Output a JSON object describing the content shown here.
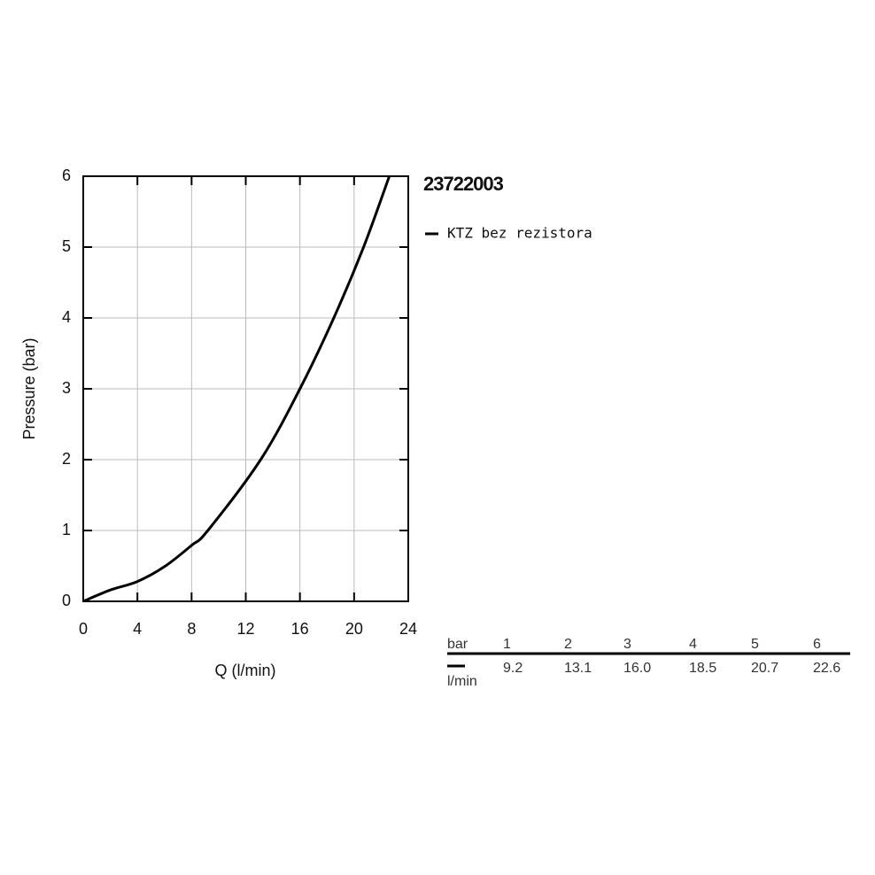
{
  "chart_data": {
    "type": "line",
    "title": "23722003",
    "x_label": "Q (l/min)",
    "y_label": "Pressure (bar)",
    "x": [
      0,
      2,
      4,
      6,
      8,
      9.2,
      13.1,
      16.0,
      18.5,
      20.7,
      22.6
    ],
    "series": [
      {
        "name": "KTZ bez rezistora",
        "color": "#000000",
        "values": [
          0,
          0.16,
          0.28,
          0.49,
          0.79,
          1,
          2,
          3,
          4,
          5,
          6
        ]
      }
    ],
    "xlim": [
      0,
      24
    ],
    "xticks": [
      0,
      4,
      8,
      12,
      16,
      20,
      24
    ],
    "ylim": [
      0,
      6
    ],
    "yticks": [
      0,
      1,
      2,
      3,
      4,
      5,
      6
    ],
    "grid": true
  },
  "table": {
    "header_label": "bar",
    "columns": [
      "1",
      "2",
      "3",
      "4",
      "5",
      "6"
    ],
    "row_label": "l/min",
    "values": [
      "9.2",
      "13.1",
      "16.0",
      "18.5",
      "20.7",
      "22.6"
    ]
  }
}
